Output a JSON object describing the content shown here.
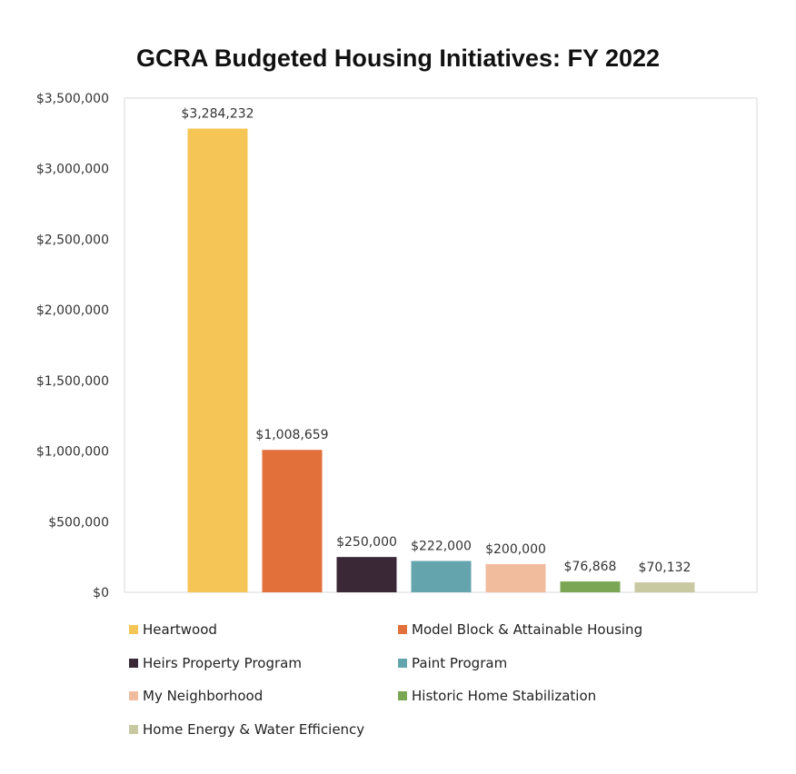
{
  "chart_data": {
    "type": "bar",
    "title": "GCRA Budgeted Housing Initiatives: FY 2022",
    "xlabel": "",
    "ylabel": "",
    "ylim": [
      0,
      3500000
    ],
    "ytick_values": [
      0,
      500000,
      1000000,
      1500000,
      2000000,
      2500000,
      3000000,
      3500000
    ],
    "ytick_labels": [
      "$0",
      "$500,000",
      "$1,000,000",
      "$1,500,000",
      "$2,000,000",
      "$2,500,000",
      "$3,000,000",
      "$3,500,000"
    ],
    "grid": false,
    "legend_position": "bottom",
    "categories": [
      "Heartwood",
      "Model Block & Attainable Housing",
      "Heirs Property Program",
      "Paint Program",
      "My Neighborhood",
      "Historic Home Stabilization",
      "Home Energy & Water Efficiency"
    ],
    "values": [
      3284232,
      1008659,
      250000,
      222000,
      200000,
      76868,
      70132
    ],
    "data_labels": [
      "$3,284,232",
      "$1,008,659",
      "$250,000",
      "$222,000",
      "$200,000",
      "$76,868",
      "$70,132"
    ],
    "colors": [
      "#F5C655",
      "#E2703A",
      "#3A2837",
      "#64A5AD",
      "#F1BC9E",
      "#7BA755",
      "#C8C9A0"
    ]
  }
}
